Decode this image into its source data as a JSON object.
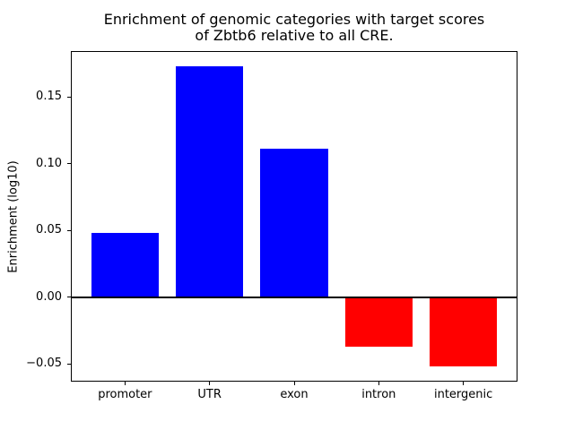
{
  "chart_data": {
    "type": "bar",
    "title_line1": "Enrichment of genomic categories with target scores",
    "title_line2": "of Zbtb6 relative to all CRE.",
    "ylabel": "Enrichment (log10)",
    "xlabel": "",
    "categories": [
      "promoter",
      "UTR",
      "exon",
      "intron",
      "intergenic"
    ],
    "values": [
      0.048,
      0.173,
      0.111,
      -0.037,
      -0.052
    ],
    "yticks": [
      0.15,
      0.1,
      0.05,
      0.0,
      -0.05
    ],
    "ytick_labels": [
      "0.15",
      "0.10",
      "0.05",
      "0.00",
      "−0.05"
    ],
    "ylim": [
      -0.06325,
      0.18425
    ],
    "xlim": [
      -0.64,
      4.64
    ],
    "bar_width_units": 0.8,
    "positive_color": "#0000ff",
    "negative_color": "#ff0000",
    "zero_line_color": "#000000",
    "axis_color": "#000000",
    "background_color": "#ffffff",
    "grid": false,
    "legend": "none"
  }
}
